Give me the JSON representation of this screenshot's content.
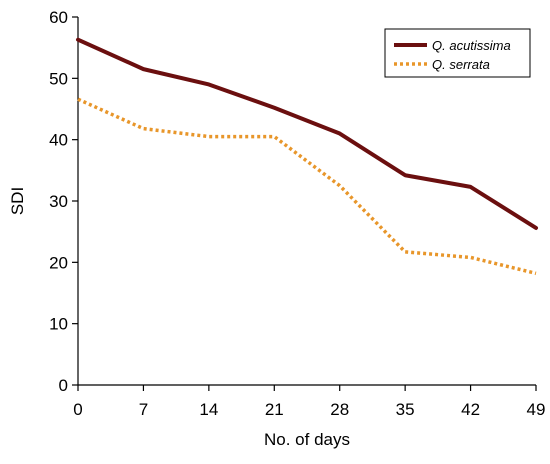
{
  "chart_data": {
    "type": "line",
    "xlabel": "No. of days",
    "ylabel": "SDI",
    "x": [
      0,
      7,
      14,
      21,
      28,
      35,
      42,
      49
    ],
    "xlim": [
      0,
      49
    ],
    "ylim": [
      0,
      60
    ],
    "y_ticks": [
      0,
      10,
      20,
      30,
      40,
      50,
      60
    ],
    "grid": false,
    "legend_position": "top-right",
    "series": [
      {
        "name": "Q. acutissima",
        "values": [
          56.3,
          51.5,
          49.0,
          45.2,
          41.0,
          34.2,
          32.3,
          25.6
        ],
        "color": "#6b0f0f",
        "line_style": "solid"
      },
      {
        "name": "Q. serrata",
        "values": [
          46.6,
          41.8,
          40.5,
          40.5,
          32.5,
          21.7,
          20.8,
          18.2
        ],
        "color": "#e8962a",
        "line_style": "dotted"
      }
    ]
  }
}
